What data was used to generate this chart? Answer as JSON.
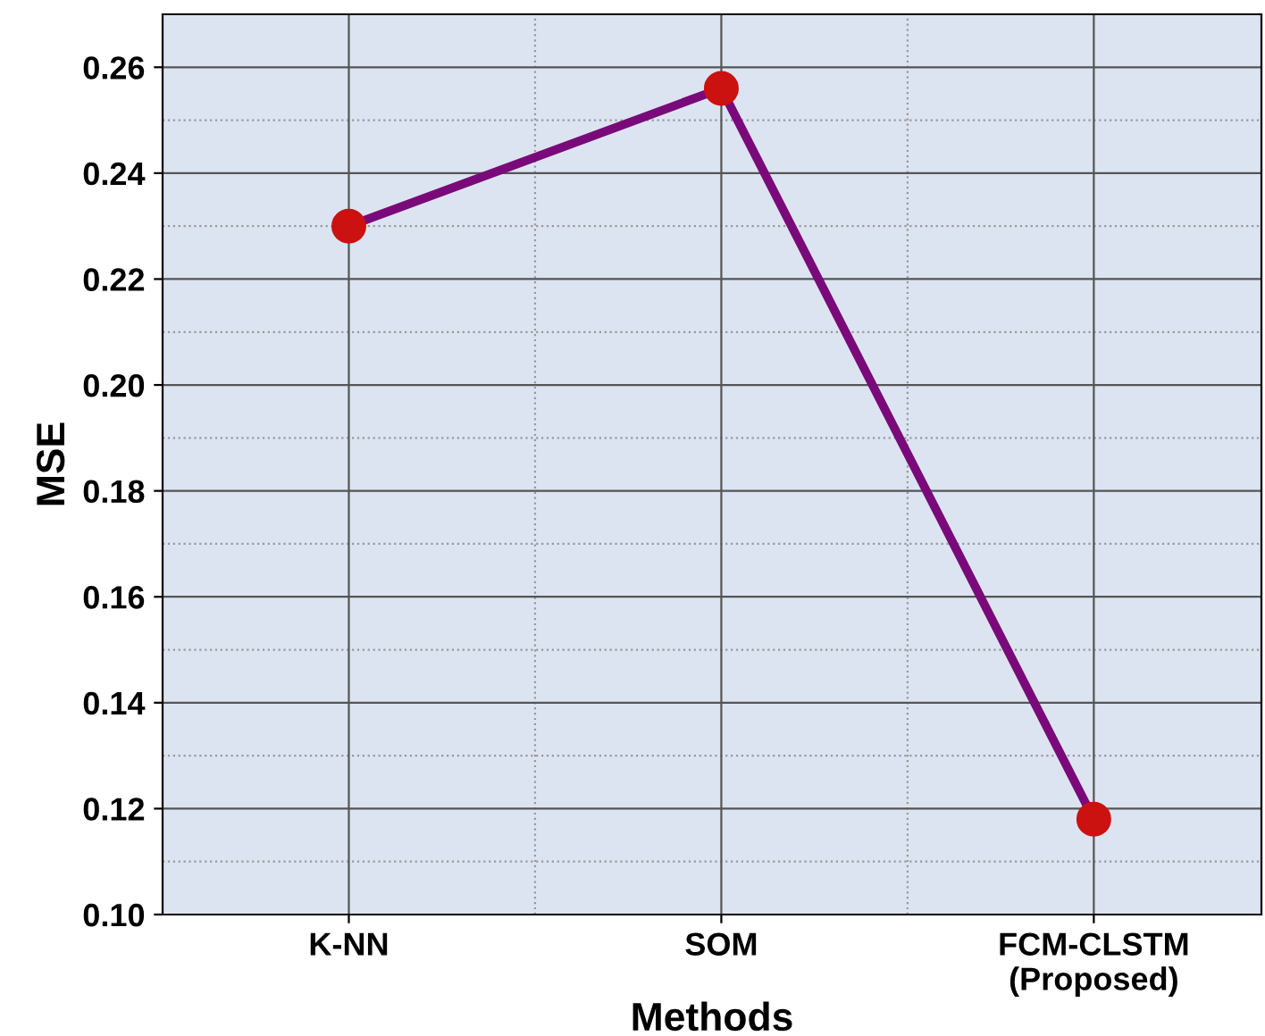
{
  "chart_data": {
    "type": "line",
    "xlabel": "Methods",
    "ylabel": "MSE",
    "categories": [
      "K-NN",
      "SOM",
      "FCM-CLSTM\n(Proposed)"
    ],
    "series": [
      {
        "color": "#7a0a7a",
        "values": [
          0.23,
          0.256,
          0.118
        ]
      },
      {
        "type": "scatter",
        "marker": "circle",
        "color": "#cc1111",
        "x": [
          "K-NN",
          "SOM",
          "FCM-CLSTM\n(Proposed)"
        ],
        "values": [
          0.23,
          0.256,
          0.118
        ]
      }
    ],
    "ylim": [
      0.1,
      0.27
    ],
    "yticks": [
      {
        "value": 0.1,
        "label": "0.10"
      },
      {
        "value": 0.12,
        "label": "0.12"
      },
      {
        "value": 0.14,
        "label": "0.14"
      },
      {
        "value": 0.16,
        "label": "0.16"
      },
      {
        "value": 0.18,
        "label": "0.18"
      },
      {
        "value": 0.2,
        "label": "0.20"
      },
      {
        "value": 0.22,
        "label": "0.22"
      },
      {
        "value": 0.24,
        "label": "0.24"
      },
      {
        "value": 0.26,
        "label": "0.26"
      }
    ],
    "grid": true,
    "line_style": "solid",
    "legend": false
  }
}
